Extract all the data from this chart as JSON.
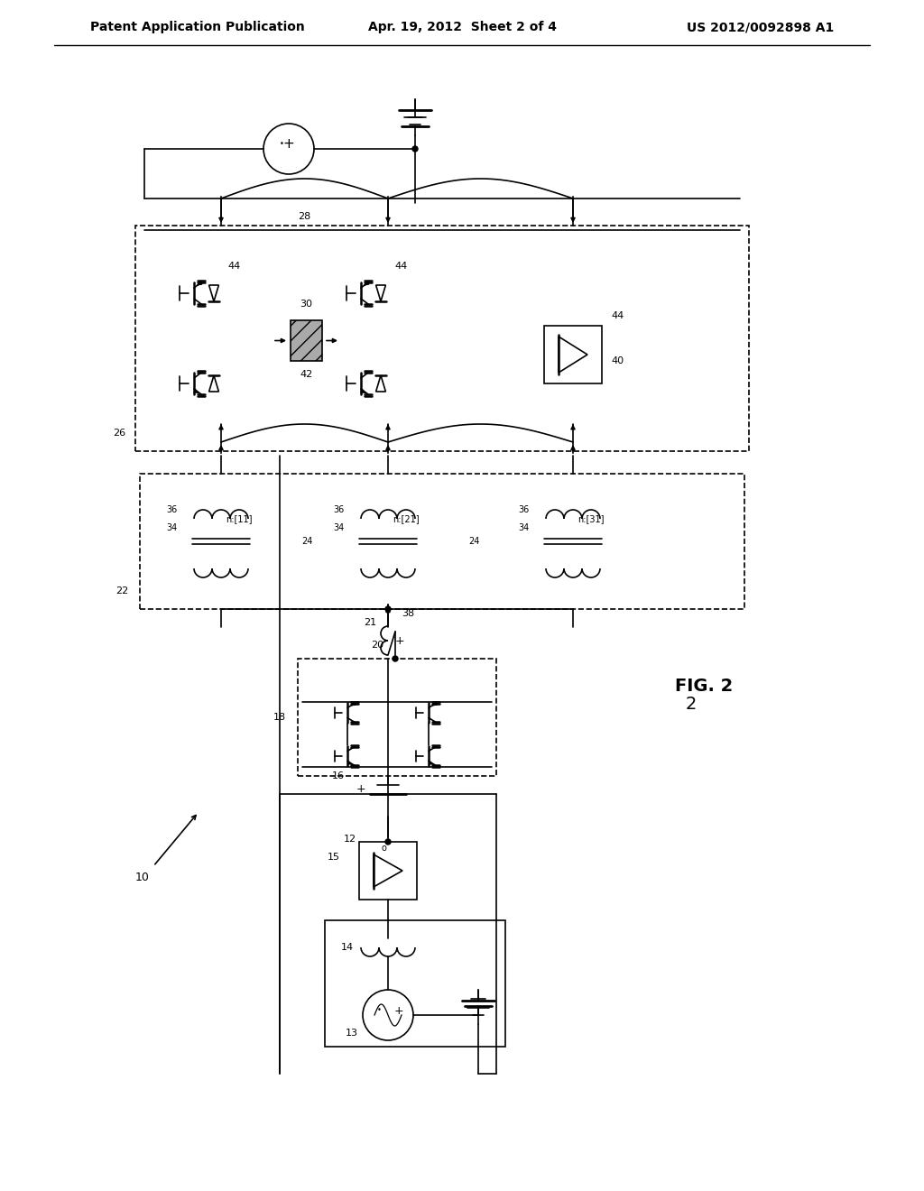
{
  "bg_color": "#ffffff",
  "title_left": "Patent Application Publication",
  "title_center": "Apr. 19, 2012  Sheet 2 of 4",
  "title_right": "US 2012/0092898 A1",
  "fig_label": "FIG. 2"
}
